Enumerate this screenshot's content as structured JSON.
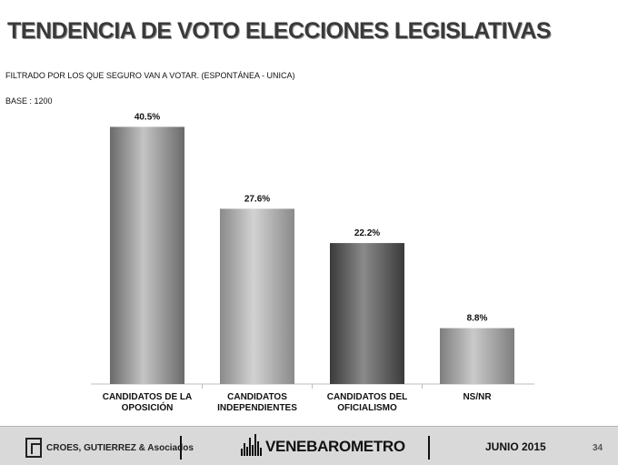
{
  "header": {
    "title": "TENDENCIA DE VOTO ELECCIONES LEGISLATIVAS",
    "subtitle": "FILTRADO POR LOS QUE SEGURO VAN A VOTAR.   (ESPONTÁNEA - UNICA)",
    "base": "BASE : 1200"
  },
  "chart_data": {
    "type": "bar",
    "categories": [
      [
        "CANDIDATOS DE LA",
        "OPOSICIÓN"
      ],
      [
        "CANDIDATOS",
        "INDEPENDIENTES"
      ],
      [
        "CANDIDATOS DEL",
        "OFICIALISMO"
      ],
      [
        "NS/NR"
      ]
    ],
    "values": [
      40.5,
      27.6,
      22.2,
      8.8
    ],
    "data_labels": [
      "40.5%",
      "27.6%",
      "22.2%",
      "8.8%"
    ],
    "ylim": [
      0,
      45
    ],
    "grid": false,
    "legend": "none",
    "bar_colors": [
      "#8c8c8c",
      "#a6a6a6",
      "#5a5a5a",
      "#9e9e9e"
    ]
  },
  "footer": {
    "logo1_text": "CROES, GUTIERREZ & Asociados",
    "logo2_text": "VENEBAROMETRO",
    "date": "JUNIO 2015",
    "page": "34"
  }
}
